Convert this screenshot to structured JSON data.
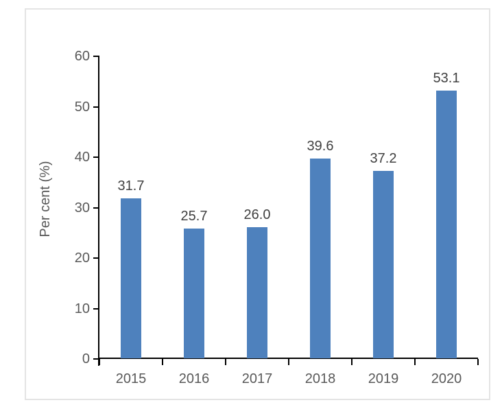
{
  "chart_data": {
    "type": "bar",
    "title": "",
    "categories": [
      "2015",
      "2016",
      "2017",
      "2018",
      "2019",
      "2020"
    ],
    "values": [
      31.7,
      25.7,
      26.0,
      39.6,
      37.2,
      53.1
    ],
    "data_labels": [
      "31.7",
      "25.7",
      "26.0",
      "39.6",
      "37.2",
      "53.1"
    ],
    "xlabel": "",
    "ylabel": "Per cent (%)",
    "ylim": [
      0,
      60
    ],
    "yticks": [
      0,
      10,
      20,
      30,
      40,
      50,
      60
    ],
    "ytick_labels": [
      "0",
      "10",
      "20",
      "30",
      "40",
      "50",
      "60"
    ],
    "grid": false,
    "legend": "none",
    "colors": {
      "bar": "#4e81bd",
      "axis": "#000000",
      "tick_label": "#595959",
      "data_label": "#404040",
      "panel_border": "#e4e4e4",
      "background": "#ffffff"
    }
  }
}
